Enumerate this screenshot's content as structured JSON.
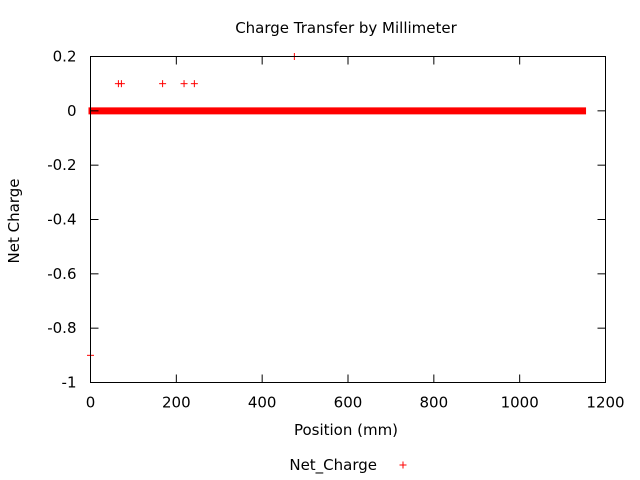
{
  "chart_data": {
    "type": "scatter",
    "title": "Charge Transfer by Millimeter",
    "xlabel": "Position (mm)",
    "ylabel": "Net Charge",
    "xlim": [
      0,
      1200
    ],
    "ylim": [
      -1,
      0.2
    ],
    "x_ticks": [
      0,
      200,
      400,
      600,
      800,
      1000,
      1200
    ],
    "y_ticks": [
      0.2,
      0,
      -0.2,
      -0.4,
      -0.6,
      -0.8,
      -1
    ],
    "x_tick_labels": [
      "0",
      "200",
      "400",
      "600",
      "800",
      "1000",
      "1200"
    ],
    "y_tick_labels": [
      "0.2",
      "0",
      "-0.2",
      "-0.4",
      "-0.6",
      "-0.8",
      "-1"
    ],
    "grid": false,
    "legend": {
      "position": "bottom-center",
      "entries": [
        "Net_Charge"
      ]
    },
    "series": [
      {
        "name": "Net_Charge",
        "color": "#ff0000",
        "marker": "plus",
        "dense_runs": [
          {
            "x_start": 0,
            "x_end": 1150,
            "y": 0
          }
        ],
        "points": [
          {
            "x": 0,
            "y": -0.9
          },
          {
            "x": 65,
            "y": 0.1
          },
          {
            "x": 72,
            "y": 0.1
          },
          {
            "x": 168,
            "y": 0.1
          },
          {
            "x": 218,
            "y": 0.1
          },
          {
            "x": 242,
            "y": 0.1
          },
          {
            "x": 475,
            "y": 0.2
          }
        ]
      }
    ]
  }
}
